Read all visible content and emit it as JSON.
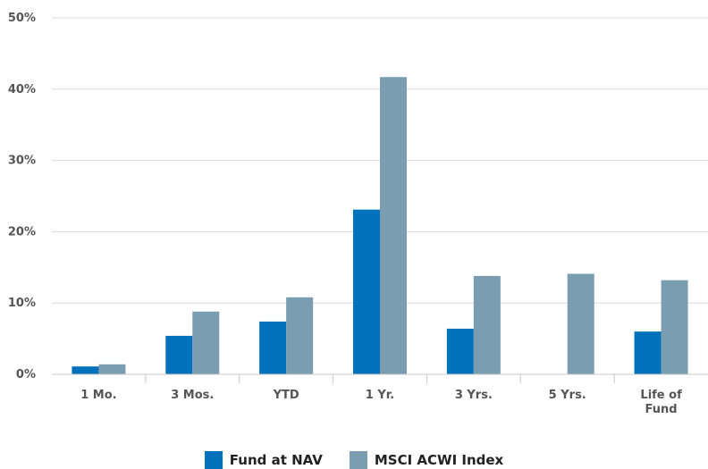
{
  "chart_data": {
    "type": "bar",
    "categories": [
      "1 Mo.",
      "3 Mos.",
      "YTD",
      "1 Yr.",
      "3 Yrs.",
      "5 Yrs.",
      "Life of Fund"
    ],
    "category_lines": [
      [
        "1 Mo."
      ],
      [
        "3 Mos."
      ],
      [
        "YTD"
      ],
      [
        "1 Yr."
      ],
      [
        "3 Yrs."
      ],
      [
        "5 Yrs."
      ],
      [
        "Life of",
        "Fund"
      ]
    ],
    "series": [
      {
        "name": "Fund at NAV",
        "color": "#0072bc",
        "values": [
          1.1,
          5.4,
          7.4,
          23.1,
          6.4,
          null,
          6.0
        ]
      },
      {
        "name": "MSCI ACWI Index",
        "color": "#7a9db0",
        "values": [
          1.4,
          8.8,
          10.8,
          41.7,
          13.8,
          14.1,
          13.2
        ]
      }
    ],
    "ylim": [
      0,
      50
    ],
    "yticks": [
      0,
      10,
      20,
      30,
      40,
      50
    ],
    "ytick_labels": [
      "0%",
      "10%",
      "20%",
      "30%",
      "40%",
      "50%"
    ],
    "grid": true,
    "legend_position": "bottom-center"
  }
}
